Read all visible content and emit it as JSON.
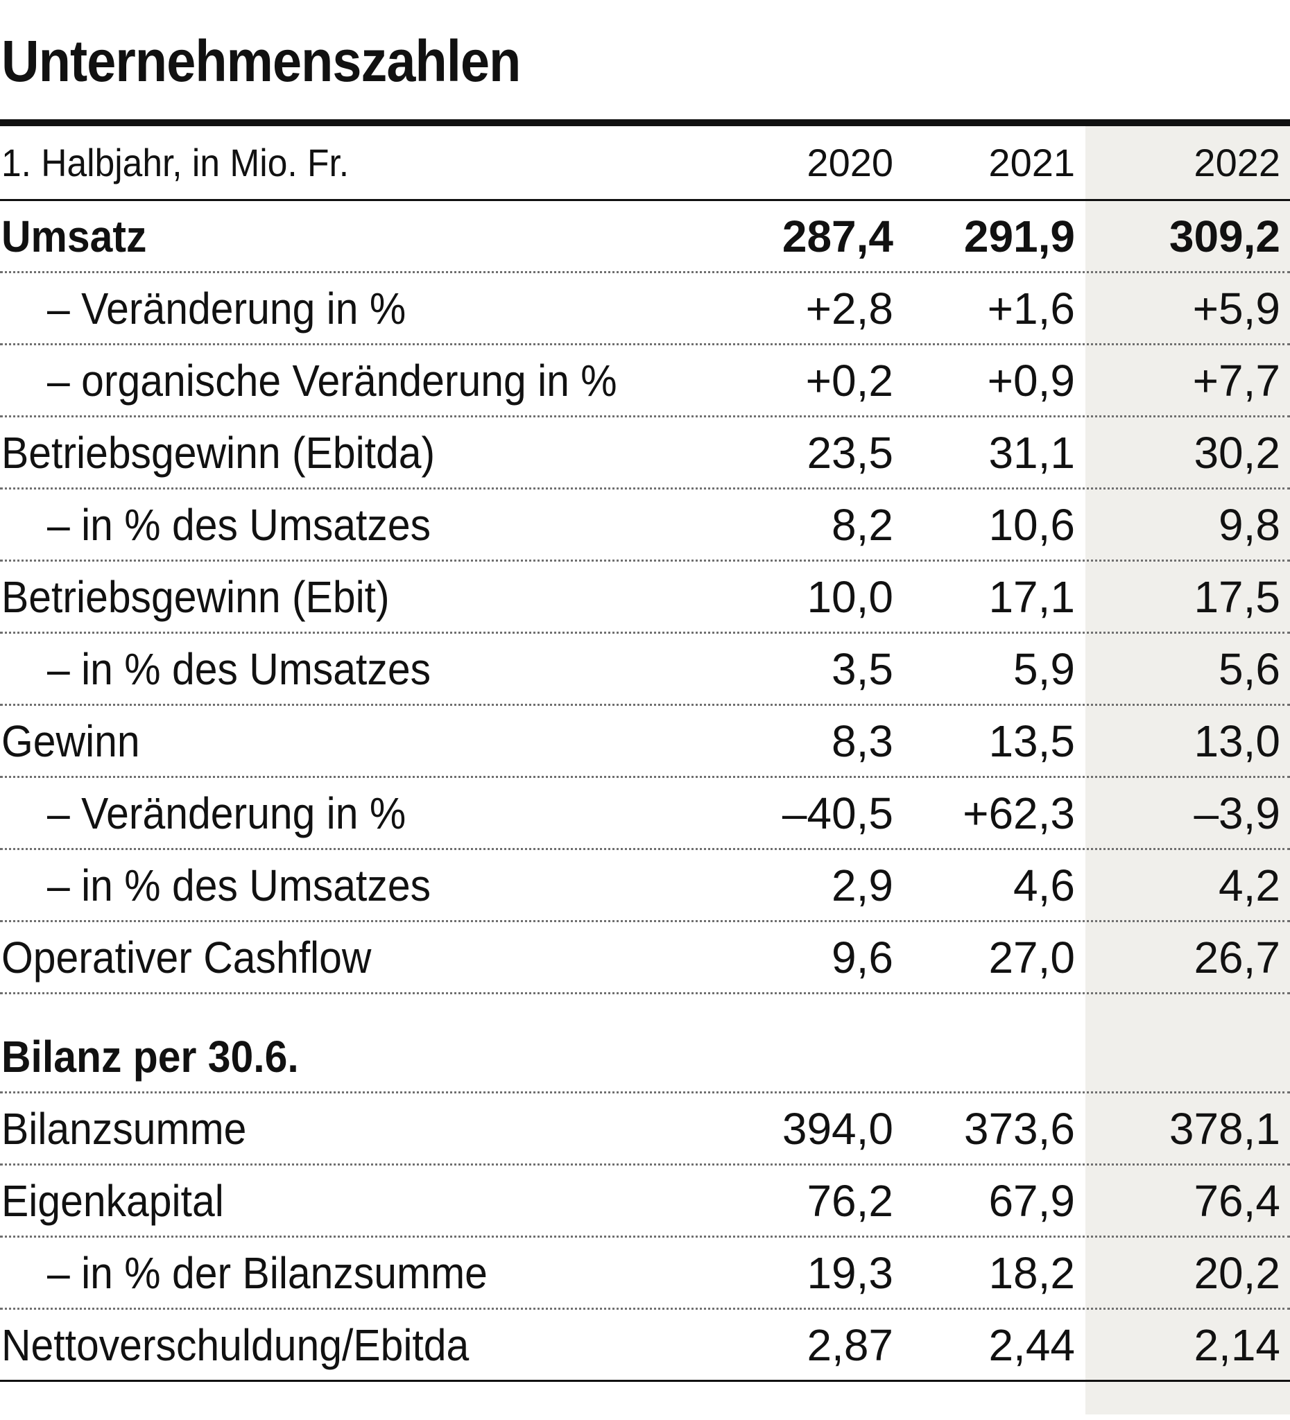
{
  "title": "Unternehmenszahlen",
  "header": {
    "label": "1. Halbjahr, in Mio. Fr.",
    "years": [
      "2020",
      "2021",
      "2022"
    ]
  },
  "rows": [
    {
      "label": "Umsatz",
      "values": [
        "287,4",
        "291,9",
        "309,2"
      ]
    },
    {
      "label": "– Veränderung in %",
      "values": [
        "+2,8",
        "+1,6",
        "+5,9"
      ]
    },
    {
      "label": "– organische Veränderung in %",
      "values": [
        "+0,2",
        "+0,9",
        "+7,7"
      ]
    },
    {
      "label": "Betriebsgewinn (Ebitda)",
      "values": [
        "23,5",
        "31,1",
        "30,2"
      ]
    },
    {
      "label": "– in % des Umsatzes",
      "values": [
        "8,2",
        "10,6",
        "9,8"
      ]
    },
    {
      "label": "Betriebsgewinn (Ebit)",
      "values": [
        "10,0",
        "17,1",
        "17,5"
      ]
    },
    {
      "label": "– in % des Umsatzes",
      "values": [
        "3,5",
        "5,9",
        "5,6"
      ]
    },
    {
      "label": "Gewinn",
      "values": [
        "8,3",
        "13,5",
        "13,0"
      ]
    },
    {
      "label": "– Veränderung in %",
      "values": [
        "–40,5",
        "+62,3",
        "–3,9"
      ]
    },
    {
      "label": "– in % des Umsatzes",
      "values": [
        "2,9",
        "4,6",
        "4,2"
      ]
    },
    {
      "label": "Operativer Cashflow",
      "values": [
        "9,6",
        "27,0",
        "26,7"
      ]
    }
  ],
  "balance_section": {
    "title": "Bilanz per 30.6.",
    "rows": [
      {
        "label": "Bilanzsumme",
        "values": [
          "394,0",
          "373,6",
          "378,1"
        ]
      },
      {
        "label": "Eigenkapital",
        "values": [
          "76,2",
          "67,9",
          "76,4"
        ]
      },
      {
        "label": "– in % der Bilanzsumme",
        "values": [
          "19,3",
          "18,2",
          "20,2"
        ]
      },
      {
        "label": "Nettoverschuldung/Ebitda",
        "values": [
          "2,87",
          "2,44",
          "2,14"
        ]
      }
    ]
  },
  "colors": {
    "highlight_column": "#f0efeb",
    "text": "#111111"
  }
}
